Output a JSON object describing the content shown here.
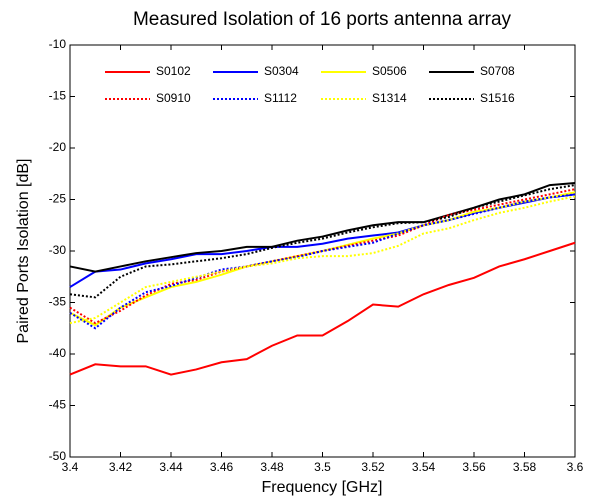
{
  "chart_data": {
    "type": "line",
    "title": "Measured Isolation of 16 ports antenna array",
    "xlabel": "Frequency [GHz]",
    "ylabel": "Paired Ports Isolation [dB]",
    "x": [
      3.4,
      3.41,
      3.42,
      3.43,
      3.44,
      3.45,
      3.46,
      3.47,
      3.48,
      3.49,
      3.5,
      3.51,
      3.52,
      3.53,
      3.54,
      3.55,
      3.56,
      3.57,
      3.58,
      3.59,
      3.6
    ],
    "xlim": [
      3.4,
      3.6
    ],
    "xticks": [
      3.4,
      3.42,
      3.44,
      3.46,
      3.48,
      3.5,
      3.52,
      3.54,
      3.56,
      3.58,
      3.6
    ],
    "ylim": [
      -50,
      -10
    ],
    "yticks": [
      -50,
      -45,
      -40,
      -35,
      -30,
      -25,
      -20,
      -15,
      -10
    ],
    "legend": "top",
    "series": [
      {
        "name": "S0102",
        "color": "#ff0000",
        "linestyle": "solid",
        "values": [
          -42,
          -41,
          -41.2,
          -41.2,
          -42,
          -41.5,
          -40.8,
          -40.5,
          -39.2,
          -38.2,
          -38.2,
          -36.8,
          -35.2,
          -35.4,
          -34.2,
          -33.3,
          -32.6,
          -31.5,
          -30.8,
          -30,
          -29.2
        ]
      },
      {
        "name": "S0304",
        "color": "#0000ff",
        "linestyle": "solid",
        "values": [
          -33.5,
          -32,
          -31.8,
          -31.2,
          -30.8,
          -30.3,
          -30.3,
          -30,
          -29.6,
          -29.6,
          -29.3,
          -28.8,
          -28.5,
          -28.2,
          -27.5,
          -27,
          -26.3,
          -25.8,
          -25.3,
          -24.8,
          -24.5
        ]
      },
      {
        "name": "S0506",
        "color": "#ffff00",
        "linestyle": "solid",
        "values": [
          -36,
          -37.2,
          -35.5,
          -34.5,
          -33.5,
          -33,
          -32.3,
          -31.5,
          -31,
          -30.5,
          -30,
          -29.4,
          -28.8,
          -28.3,
          -27.5,
          -27,
          -26.2,
          -25.8,
          -25.2,
          -24.8,
          -24.3
        ]
      },
      {
        "name": "S0708",
        "color": "#000000",
        "linestyle": "solid",
        "values": [
          -31.5,
          -32,
          -31.5,
          -31,
          -30.6,
          -30.2,
          -30,
          -29.6,
          -29.6,
          -29,
          -28.6,
          -28,
          -27.5,
          -27.2,
          -27.2,
          -26.5,
          -25.8,
          -25,
          -24.5,
          -23.6,
          -23.4
        ]
      },
      {
        "name": "S0910",
        "color": "#ff0000",
        "linestyle": "dotted",
        "values": [
          -35.5,
          -37,
          -35.8,
          -34.3,
          -33.2,
          -32.8,
          -32,
          -31.5,
          -31,
          -30.5,
          -30,
          -29.5,
          -29,
          -28.5,
          -27.5,
          -26.5,
          -26,
          -25.5,
          -25,
          -24.5,
          -24
        ]
      },
      {
        "name": "S1112",
        "color": "#0000ff",
        "linestyle": "dotted",
        "values": [
          -36,
          -37.5,
          -35.5,
          -34,
          -33.4,
          -32.6,
          -31.8,
          -31.5,
          -31,
          -30.6,
          -30,
          -29.6,
          -29.2,
          -28.3,
          -27.5,
          -27,
          -26.4,
          -25.8,
          -25.2,
          -24.8,
          -24.5
        ]
      },
      {
        "name": "S1314",
        "color": "#ffff00",
        "linestyle": "dotted",
        "values": [
          -37,
          -36.5,
          -35,
          -33.5,
          -33,
          -32.5,
          -32,
          -31.5,
          -31.2,
          -30.7,
          -30.5,
          -30.5,
          -30.2,
          -29.5,
          -28.3,
          -27.8,
          -27,
          -26.3,
          -25.8,
          -25.2,
          -24.7
        ]
      },
      {
        "name": "S1516",
        "color": "#000000",
        "linestyle": "dotted",
        "values": [
          -34.2,
          -34.5,
          -32.5,
          -31.5,
          -31.3,
          -31,
          -30.7,
          -30.3,
          -29.7,
          -29.2,
          -28.8,
          -28.2,
          -27.7,
          -27.3,
          -27.2,
          -26.7,
          -25.8,
          -25.2,
          -24.6,
          -24,
          -23.6
        ]
      }
    ]
  }
}
